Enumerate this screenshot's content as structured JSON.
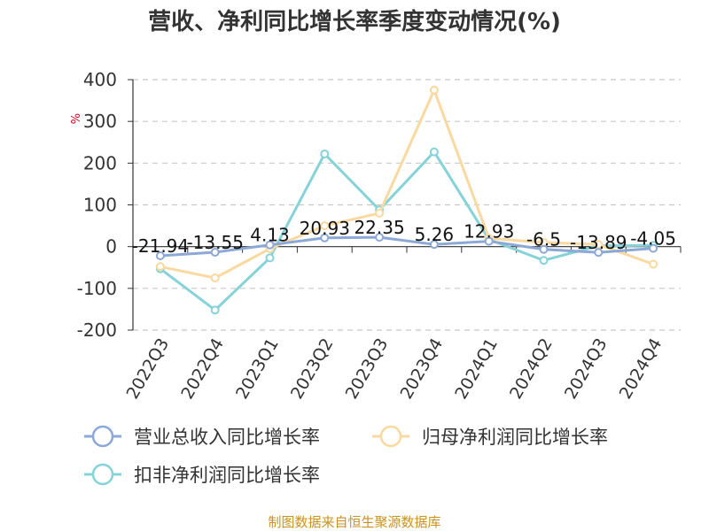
{
  "chart_data": {
    "type": "line",
    "title": "营收、净利同比增长率季度变动情况(%)",
    "ylabel": "%",
    "ylim": [
      -200,
      400
    ],
    "yticks": [
      -200,
      -100,
      0,
      100,
      200,
      300,
      400
    ],
    "grid": true,
    "categories": [
      "2022Q3",
      "2022Q4",
      "2023Q1",
      "2023Q2",
      "2023Q3",
      "2023Q4",
      "2024Q1",
      "2024Q2",
      "2024Q3",
      "2024Q4"
    ],
    "series": [
      {
        "name": "营业总收入同比增长率",
        "color": "#8ca8d6",
        "values": [
          -21.94,
          -13.55,
          4.13,
          20.93,
          22.35,
          5.26,
          12.93,
          -6.5,
          -13.89,
          -4.05
        ],
        "labels": [
          "-21.94",
          "-13.55",
          "4.13",
          "20.93",
          "22.35",
          "5.26",
          "12.93",
          "-6.5",
          "-13.89",
          "-4.05"
        ]
      },
      {
        "name": "归母净利润同比增长率",
        "color": "#fad9a0",
        "values": [
          -48,
          -75,
          -5,
          50,
          80,
          375,
          20,
          10,
          5,
          -42
        ]
      },
      {
        "name": "扣非净利润同比增长率",
        "color": "#85d3d8",
        "values": [
          -53,
          -152,
          -27,
          222,
          88,
          227,
          17,
          -33,
          2,
          3
        ]
      }
    ],
    "legend_position": "bottom"
  },
  "footer": "制图数据来自恒生聚源数据库"
}
